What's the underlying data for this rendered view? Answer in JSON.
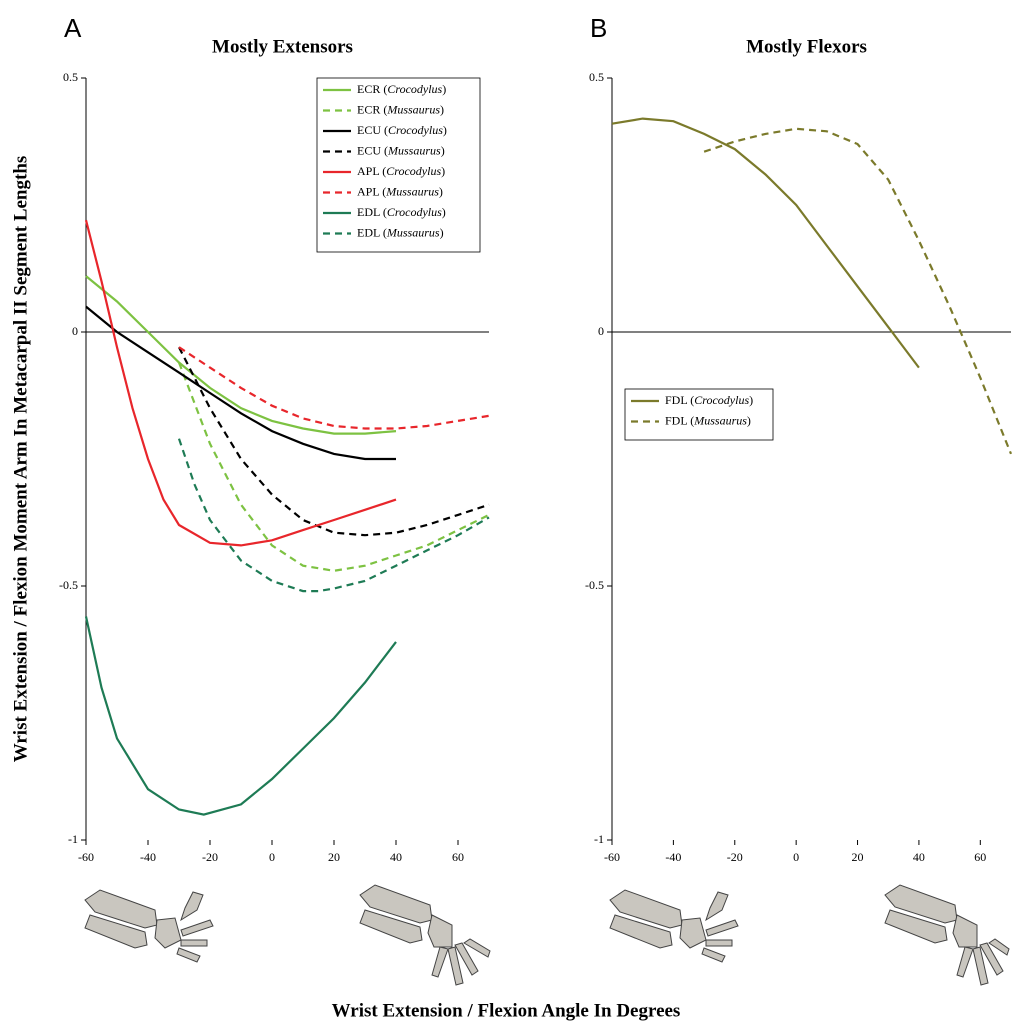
{
  "ylabel": "Wrist Extension / Flexion Moment Arm In Metacarpal II Segment Lengths",
  "xlabel": "Wrist Extension / Flexion Angle In Degrees",
  "chart_data": [
    {
      "type": "line",
      "panel": "A",
      "title": "Mostly Extensors",
      "xlim": [
        -60,
        70
      ],
      "xticks": [
        -60,
        -40,
        -20,
        0,
        20,
        40,
        60
      ],
      "ylim": [
        -1,
        0.5
      ],
      "yticks": [
        -1,
        -0.5,
        0,
        0.5
      ],
      "zero_line": true,
      "legend": "upper right",
      "series": [
        {
          "name": "ECR (Crocodylus)",
          "color": "#7dc242",
          "style": "solid",
          "x": [
            -60,
            -50,
            -40,
            -30,
            -20,
            -10,
            0,
            10,
            20,
            30,
            40
          ],
          "values": [
            0.11,
            0.06,
            0.0,
            -0.06,
            -0.11,
            -0.15,
            -0.175,
            -0.19,
            -0.2,
            -0.2,
            -0.195
          ]
        },
        {
          "name": "ECR (Mussaurus)",
          "color": "#7dc242",
          "style": "dashed",
          "x": [
            -30,
            -25,
            -20,
            -10,
            0,
            10,
            20,
            30,
            40,
            50,
            60,
            70
          ],
          "values": [
            -0.06,
            -0.14,
            -0.22,
            -0.34,
            -0.42,
            -0.46,
            -0.47,
            -0.46,
            -0.44,
            -0.42,
            -0.39,
            -0.36
          ]
        },
        {
          "name": "ECU (Crocodylus)",
          "color": "#000000",
          "style": "solid",
          "x": [
            -60,
            -50,
            -40,
            -30,
            -20,
            -10,
            0,
            10,
            20,
            30,
            40
          ],
          "values": [
            0.05,
            0.0,
            -0.04,
            -0.08,
            -0.12,
            -0.16,
            -0.195,
            -0.22,
            -0.24,
            -0.25,
            -0.25
          ]
        },
        {
          "name": "ECU (Mussaurus)",
          "color": "#000000",
          "style": "dashed",
          "x": [
            -30,
            -25,
            -20,
            -10,
            0,
            10,
            20,
            30,
            40,
            50,
            60,
            70
          ],
          "values": [
            -0.03,
            -0.09,
            -0.15,
            -0.25,
            -0.32,
            -0.37,
            -0.395,
            -0.4,
            -0.395,
            -0.38,
            -0.36,
            -0.34
          ]
        },
        {
          "name": "APL (Crocodylus)",
          "color": "#e8262b",
          "style": "solid",
          "x": [
            -60,
            -55,
            -50,
            -45,
            -40,
            -35,
            -30,
            -20,
            -10,
            0,
            10,
            20,
            30,
            40
          ],
          "values": [
            0.22,
            0.1,
            -0.03,
            -0.15,
            -0.25,
            -0.33,
            -0.38,
            -0.415,
            -0.42,
            -0.41,
            -0.39,
            -0.37,
            -0.35,
            -0.33
          ]
        },
        {
          "name": "APL (Mussaurus)",
          "color": "#e8262b",
          "style": "dashed",
          "x": [
            -30,
            -20,
            -10,
            0,
            10,
            20,
            30,
            40,
            50,
            60,
            70
          ],
          "values": [
            -0.03,
            -0.07,
            -0.11,
            -0.145,
            -0.17,
            -0.185,
            -0.19,
            -0.19,
            -0.185,
            -0.175,
            -0.165
          ]
        },
        {
          "name": "EDL (Crocodylus)",
          "color": "#1e7b55",
          "style": "solid",
          "x": [
            -60,
            -55,
            -50,
            -40,
            -30,
            -22,
            -10,
            0,
            10,
            20,
            30,
            40
          ],
          "values": [
            -0.56,
            -0.7,
            -0.8,
            -0.9,
            -0.94,
            -0.95,
            -0.93,
            -0.88,
            -0.82,
            -0.76,
            -0.69,
            -0.61
          ]
        },
        {
          "name": "EDL (Mussaurus)",
          "color": "#1e7b55",
          "style": "dashed",
          "x": [
            -30,
            -25,
            -20,
            -10,
            0,
            10,
            15,
            20,
            30,
            40,
            50,
            60,
            70
          ],
          "values": [
            -0.21,
            -0.3,
            -0.37,
            -0.45,
            -0.49,
            -0.51,
            -0.51,
            -0.505,
            -0.49,
            -0.46,
            -0.43,
            -0.4,
            -0.365
          ]
        }
      ]
    },
    {
      "type": "line",
      "panel": "B",
      "title": "Mostly Flexors",
      "xlim": [
        -60,
        70
      ],
      "xticks": [
        -60,
        -40,
        -20,
        0,
        20,
        40,
        60
      ],
      "ylim": [
        -1,
        0.5
      ],
      "yticks": [
        -1,
        -0.5,
        0,
        0.5
      ],
      "zero_line": true,
      "legend": "center left",
      "series": [
        {
          "name": "FDL (Crocodylus)",
          "color": "#7b7a2b",
          "style": "solid",
          "x": [
            -60,
            -50,
            -40,
            -30,
            -20,
            -10,
            0,
            10,
            20,
            30,
            40
          ],
          "values": [
            0.41,
            0.42,
            0.415,
            0.39,
            0.36,
            0.31,
            0.25,
            0.17,
            0.09,
            0.01,
            -0.07
          ]
        },
        {
          "name": "FDL (Mussaurus)",
          "color": "#7b7a2b",
          "style": "dashed",
          "x": [
            -30,
            -20,
            -10,
            0,
            10,
            20,
            30,
            40,
            50,
            60,
            70
          ],
          "values": [
            0.355,
            0.375,
            0.39,
            0.4,
            0.395,
            0.37,
            0.3,
            0.18,
            0.05,
            -0.09,
            -0.24
          ]
        }
      ]
    }
  ]
}
